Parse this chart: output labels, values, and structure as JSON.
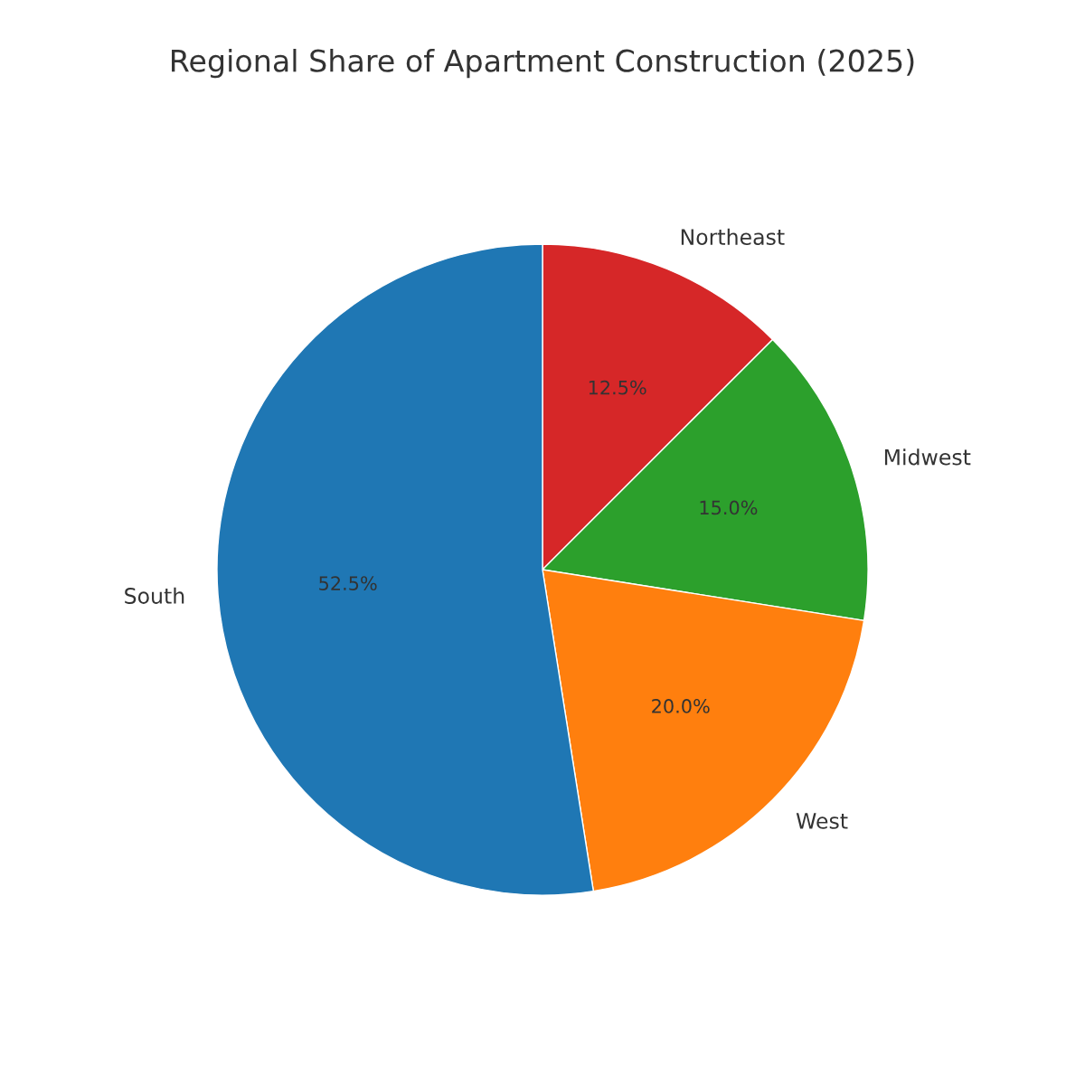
{
  "chart_data": {
    "type": "pie",
    "title": "Regional Share of Apartment Construction (2025)",
    "categories": [
      "Northeast",
      "Midwest",
      "West",
      "South"
    ],
    "values": [
      12.5,
      15.0,
      20.0,
      52.5
    ],
    "colors": [
      "#d62728",
      "#2ca02c",
      "#ff7f0e",
      "#1f77b4"
    ],
    "value_labels": [
      "12.5%",
      "15.0%",
      "20.0%",
      "52.5%"
    ]
  }
}
